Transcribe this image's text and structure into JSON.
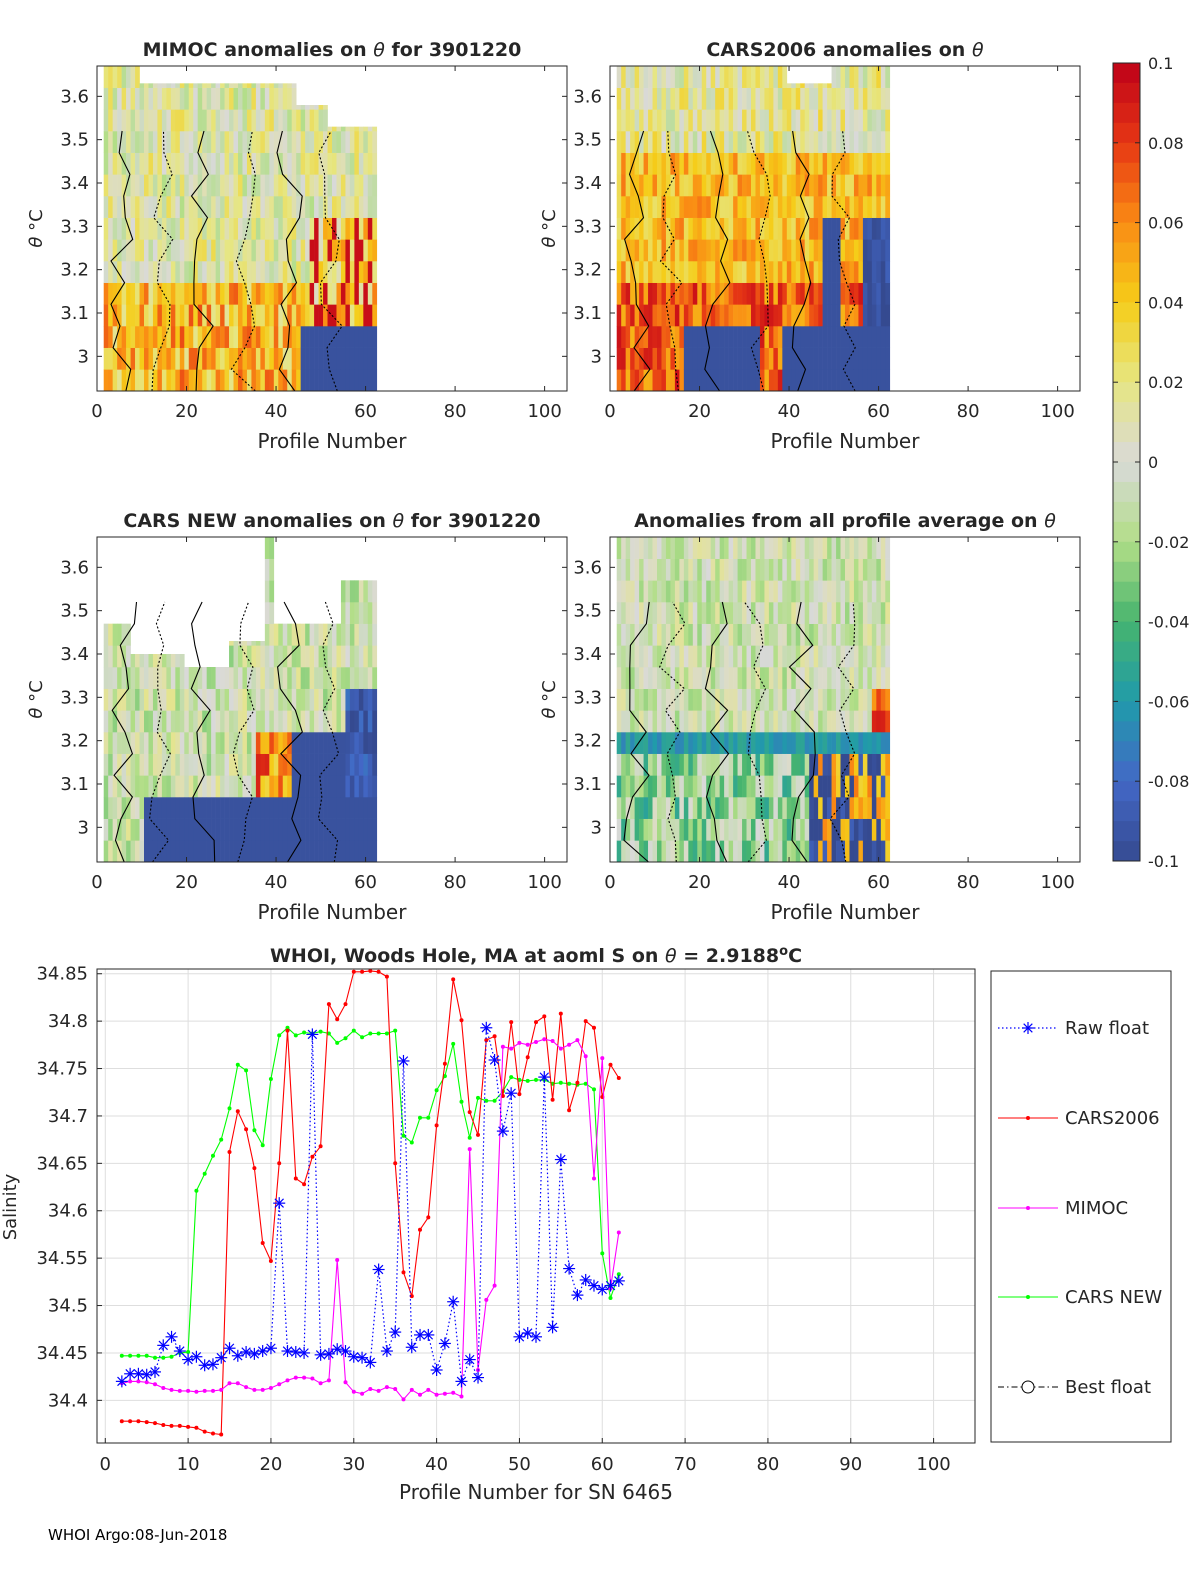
{
  "footer": "WHOI Argo:08-Jun-2018",
  "colors": {
    "raw": "#0000ff",
    "cars2006": "#ff0000",
    "mimoc": "#ff00ff",
    "carsnew": "#00ff00",
    "best": "#000000",
    "axis": "#262626",
    "grid": "#dedede"
  },
  "colorbar": {
    "range": [
      -0.1,
      0.1
    ],
    "ticks": [
      "0.1",
      "0.08",
      "0.06",
      "0.04",
      "0.02",
      "0",
      "-0.02",
      "-0.04",
      "-0.06",
      "-0.08",
      "-0.1"
    ]
  },
  "chart_data": [
    {
      "type": "heatmap",
      "id": "mimoc",
      "title_prefix": "MIMOC anomalies on ",
      "theta_symbol": "θ",
      "title_suffix": "  for 3901220",
      "xlabel": "Profile Number",
      "ylabel_theta": "θ",
      "ylabel_unit": "°C",
      "xlim": [
        0,
        105
      ],
      "ylim": [
        2.92,
        3.67
      ],
      "xticks": [
        "0",
        "20",
        "40",
        "60",
        "80",
        "100"
      ],
      "yticks": [
        "3",
        "3.1",
        "3.2",
        "3.3",
        "3.4",
        "3.5",
        "3.6"
      ],
      "profiles": [
        2,
        62
      ],
      "pattern": "mimoc"
    },
    {
      "type": "heatmap",
      "id": "cars2006",
      "title_prefix": "CARS2006 anomalies on ",
      "theta_symbol": "θ",
      "title_suffix": "",
      "xlabel": "Profile Number",
      "ylabel_theta": "θ",
      "ylabel_unit": "°C",
      "xlim": [
        0,
        105
      ],
      "ylim": [
        2.92,
        3.67
      ],
      "xticks": [
        "0",
        "20",
        "40",
        "60",
        "80",
        "100"
      ],
      "yticks": [
        "3",
        "3.1",
        "3.2",
        "3.3",
        "3.4",
        "3.5",
        "3.6"
      ],
      "profiles": [
        2,
        62
      ],
      "pattern": "cars2006"
    },
    {
      "type": "heatmap",
      "id": "carsnew",
      "title_prefix": "CARS NEW anomalies on ",
      "theta_symbol": "θ",
      "title_suffix": " for 3901220",
      "xlabel": "Profile Number",
      "ylabel_theta": "θ",
      "ylabel_unit": "°C",
      "xlim": [
        0,
        105
      ],
      "ylim": [
        2.92,
        3.67
      ],
      "xticks": [
        "0",
        "20",
        "40",
        "60",
        "80",
        "100"
      ],
      "yticks": [
        "3",
        "3.1",
        "3.2",
        "3.3",
        "3.4",
        "3.5",
        "3.6"
      ],
      "profiles": [
        2,
        62
      ],
      "pattern": "carsnew"
    },
    {
      "type": "heatmap",
      "id": "allavg",
      "title_prefix": "Anomalies from all profile average on ",
      "theta_symbol": "θ",
      "title_suffix": "",
      "xlabel": "Profile Number",
      "ylabel_theta": "θ",
      "ylabel_unit": "°C",
      "xlim": [
        0,
        105
      ],
      "ylim": [
        2.92,
        3.67
      ],
      "xticks": [
        "0",
        "20",
        "40",
        "60",
        "80",
        "100"
      ],
      "yticks": [
        "3",
        "3.1",
        "3.2",
        "3.3",
        "3.4",
        "3.5",
        "3.6"
      ],
      "profiles": [
        2,
        62
      ],
      "pattern": "allavg"
    },
    {
      "type": "line",
      "id": "salinity",
      "title_prefix": "WHOI, Woods Hole, MA at aoml S on ",
      "theta_symbol": "θ",
      "title_mid": " = 2.9188",
      "title_sup": "o",
      "title_unit": "C",
      "xlabel": "Profile Number for SN 6465",
      "ylabel": "Salinity",
      "xlim": [
        -1,
        105
      ],
      "ylim": [
        34.355,
        34.855
      ],
      "xticks": [
        0,
        10,
        20,
        30,
        40,
        50,
        60,
        70,
        80,
        90,
        100
      ],
      "yticks": [
        34.4,
        34.45,
        34.5,
        34.55,
        34.6,
        34.65,
        34.7,
        34.75,
        34.8,
        34.85
      ],
      "legend": [
        "Raw float",
        "CARS2006",
        "MIMOC",
        "CARS NEW",
        "Best float"
      ],
      "series": [
        {
          "name": "Raw float",
          "x": [
            2,
            3,
            4,
            5,
            6,
            7,
            8,
            9,
            10,
            11,
            12,
            13,
            14,
            15,
            16,
            17,
            18,
            19,
            20,
            21,
            22,
            23,
            24,
            25,
            26,
            27,
            28,
            29,
            30,
            31,
            32,
            33,
            34,
            35,
            36,
            37,
            38,
            39,
            40,
            41,
            42,
            43,
            44,
            45,
            46,
            47,
            48,
            49,
            50,
            51,
            52,
            53,
            54,
            55,
            56,
            57,
            58,
            59,
            60,
            61,
            62
          ],
          "y": [
            34.42,
            34.428,
            34.428,
            34.427,
            34.43,
            34.458,
            34.467,
            34.452,
            34.443,
            34.446,
            34.437,
            34.438,
            34.445,
            34.455,
            34.447,
            34.451,
            34.449,
            34.452,
            34.455,
            34.608,
            34.452,
            34.451,
            34.45,
            34.786,
            34.448,
            34.449,
            34.454,
            34.452,
            34.446,
            34.445,
            34.44,
            34.538,
            34.452,
            34.472,
            34.758,
            34.456,
            34.469,
            34.469,
            34.432,
            34.46,
            34.504,
            34.42,
            34.443,
            34.424,
            34.793,
            34.759,
            34.684,
            34.724,
            34.467,
            34.471,
            34.467,
            34.741,
            34.477,
            34.654,
            34.539,
            34.511,
            34.527,
            34.521,
            34.517,
            34.521,
            34.526
          ]
        },
        {
          "name": "CARS2006",
          "x": [
            2,
            3,
            4,
            5,
            6,
            7,
            8,
            9,
            10,
            11,
            12,
            13,
            14,
            15,
            16,
            17,
            18,
            19,
            20,
            21,
            22,
            23,
            24,
            25,
            26,
            27,
            28,
            29,
            30,
            31,
            32,
            33,
            34,
            35,
            36,
            37,
            38,
            39,
            40,
            41,
            42,
            43,
            44,
            45,
            46,
            47,
            48,
            49,
            50,
            51,
            52,
            53,
            54,
            55,
            56,
            57,
            58,
            59,
            60,
            61,
            62
          ],
          "y": [
            34.378,
            34.378,
            34.378,
            34.377,
            34.376,
            34.374,
            34.373,
            34.373,
            34.372,
            34.371,
            34.367,
            34.365,
            34.364,
            34.662,
            34.705,
            34.686,
            34.645,
            34.566,
            34.547,
            34.65,
            34.79,
            34.634,
            34.628,
            34.657,
            34.668,
            34.818,
            34.802,
            34.818,
            34.852,
            34.852,
            34.853,
            34.852,
            34.847,
            34.65,
            34.535,
            34.51,
            34.58,
            34.593,
            34.69,
            34.755,
            34.844,
            34.801,
            34.704,
            34.68,
            34.78,
            34.784,
            34.721,
            34.799,
            34.723,
            34.762,
            34.799,
            34.805,
            34.717,
            34.808,
            34.706,
            34.735,
            34.8,
            34.793,
            34.72,
            34.754,
            34.74
          ]
        },
        {
          "name": "MIMOC",
          "x": [
            2,
            3,
            4,
            5,
            6,
            7,
            8,
            9,
            10,
            11,
            12,
            13,
            14,
            15,
            16,
            17,
            18,
            19,
            20,
            21,
            22,
            23,
            24,
            25,
            26,
            27,
            28,
            29,
            30,
            31,
            32,
            33,
            34,
            35,
            36,
            37,
            38,
            39,
            40,
            41,
            42,
            43,
            44,
            45,
            46,
            47,
            48,
            49,
            50,
            51,
            52,
            53,
            54,
            55,
            56,
            57,
            58,
            59,
            60,
            61,
            62
          ],
          "y": [
            34.418,
            34.42,
            34.42,
            34.419,
            34.417,
            34.413,
            34.411,
            34.41,
            34.41,
            34.409,
            34.41,
            34.41,
            34.411,
            34.418,
            34.418,
            34.414,
            34.411,
            34.411,
            34.413,
            34.417,
            34.421,
            34.424,
            34.424,
            34.423,
            34.418,
            34.421,
            34.548,
            34.419,
            34.409,
            34.407,
            34.412,
            34.41,
            34.414,
            34.412,
            34.401,
            34.411,
            34.406,
            34.411,
            34.406,
            34.407,
            34.408,
            34.404,
            34.665,
            34.432,
            34.506,
            34.521,
            34.773,
            34.771,
            34.777,
            34.775,
            34.778,
            34.781,
            34.779,
            34.771,
            34.775,
            34.78,
            34.763,
            34.634,
            34.761,
            34.518,
            34.577
          ]
        },
        {
          "name": "CARS NEW",
          "x": [
            2,
            3,
            4,
            5,
            6,
            7,
            8,
            9,
            10,
            11,
            12,
            13,
            14,
            15,
            16,
            17,
            18,
            19,
            20,
            21,
            22,
            23,
            24,
            25,
            26,
            27,
            28,
            29,
            30,
            31,
            32,
            33,
            34,
            35,
            36,
            37,
            38,
            39,
            40,
            41,
            42,
            43,
            44,
            45,
            46,
            47,
            48,
            49,
            50,
            51,
            52,
            53,
            54,
            55,
            56,
            57,
            58,
            59,
            60,
            61,
            62
          ],
          "y": [
            34.447,
            34.447,
            34.447,
            34.447,
            34.445,
            34.445,
            34.446,
            34.45,
            34.451,
            34.621,
            34.639,
            34.658,
            34.675,
            34.708,
            34.754,
            34.748,
            34.685,
            34.669,
            34.739,
            34.785,
            34.793,
            34.785,
            34.788,
            34.787,
            34.789,
            34.787,
            34.777,
            34.782,
            34.79,
            34.783,
            34.787,
            34.787,
            34.787,
            34.79,
            34.679,
            34.672,
            34.698,
            34.698,
            34.727,
            34.742,
            34.776,
            34.715,
            34.677,
            34.719,
            34.716,
            34.716,
            34.726,
            34.741,
            34.738,
            34.737,
            34.738,
            34.738,
            34.734,
            34.735,
            34.734,
            34.733,
            34.734,
            34.728,
            34.555,
            34.508,
            34.533
          ]
        },
        {
          "name": "Best float",
          "x": [],
          "y": []
        }
      ]
    }
  ]
}
